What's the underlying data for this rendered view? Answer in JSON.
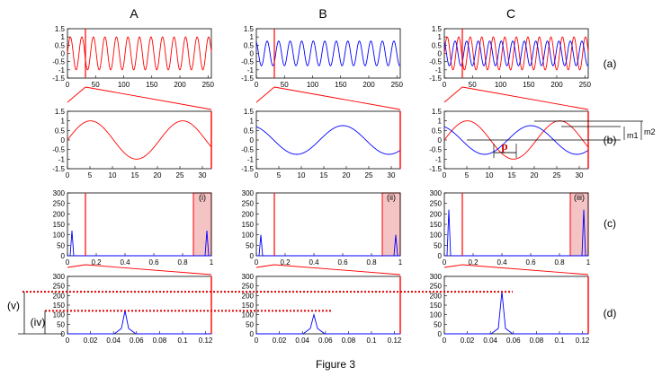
{
  "figure": {
    "caption": "Figure 3",
    "columns": [
      "A",
      "B",
      "C"
    ],
    "rows": [
      "(a)",
      "(b)",
      "(c)",
      "(d)"
    ],
    "highlight_labels": [
      "(i)",
      "(ii)",
      "(iii)"
    ],
    "side_labels": [
      "(v)",
      "(iv)"
    ],
    "annotations": {
      "phase": "p",
      "m1": "m1",
      "m2": "m2"
    },
    "colors": {
      "red": "#ff0000",
      "blue": "#0000ff",
      "highlight": "#f4c4c4",
      "dotted": "#e00000"
    }
  },
  "chart_data": [
    {
      "row": "a",
      "type": "line",
      "x_range": [
        0,
        256
      ],
      "ylim": [
        -1.5,
        1.5
      ],
      "xticks": [
        "0",
        "50",
        "100",
        "150",
        "200",
        "250"
      ],
      "yticks": [
        "1.5",
        "1",
        "0.5",
        "0",
        "-0.5",
        "-1",
        "-1.5"
      ],
      "series": [
        {
          "panel": "A",
          "color": "red",
          "amplitude": 1.0,
          "period": 20.5,
          "phase": 0
        },
        {
          "panel": "B",
          "color": "blue",
          "amplitude": 0.75,
          "period": 20.5,
          "phase": 1
        },
        {
          "panel": "C",
          "color": "red",
          "amplitude": 1.0,
          "period": 20.5,
          "phase": 0
        },
        {
          "panel": "C",
          "color": "blue",
          "amplitude": 0.75,
          "period": 20.5,
          "phase": 1
        }
      ],
      "marker_x": 32
    },
    {
      "row": "b",
      "type": "line",
      "x_range": [
        0,
        32
      ],
      "ylim": [
        -1.5,
        1.5
      ],
      "xticks": [
        "0",
        "5",
        "10",
        "15",
        "20",
        "25",
        "30"
      ],
      "yticks": [
        "1.5",
        "1",
        "0.5",
        "0",
        "-0.5",
        "-1",
        "-1.5"
      ]
    },
    {
      "row": "c",
      "type": "line",
      "x_range": [
        0,
        1
      ],
      "ylim": [
        0,
        300
      ],
      "xticks": [
        "0",
        "0.2",
        "0.4",
        "0.6",
        "0.8",
        "1"
      ],
      "yticks": [
        "300",
        "250",
        "200",
        "150",
        "100",
        "50",
        "0"
      ],
      "peaks": [
        {
          "panel": "A",
          "height": 120
        },
        {
          "panel": "B",
          "height": 100
        },
        {
          "panel": "C",
          "height": 220
        }
      ],
      "marker_x": 0.125,
      "highlight_range": [
        0.875,
        1.0
      ]
    },
    {
      "row": "d",
      "type": "line",
      "x_range": [
        0,
        0.125
      ],
      "ylim": [
        0,
        300
      ],
      "xticks": [
        "0",
        "0.02",
        "0.04",
        "0.06",
        "0.08",
        "0.1",
        "0.12"
      ],
      "yticks": [
        "300",
        "250",
        "200",
        "150",
        "100",
        "50",
        "0"
      ],
      "peaks": [
        {
          "panel": "A",
          "x": 0.05,
          "height": 120
        },
        {
          "panel": "B",
          "x": 0.05,
          "height": 100
        },
        {
          "panel": "C",
          "x": 0.05,
          "height": 220
        }
      ]
    }
  ]
}
